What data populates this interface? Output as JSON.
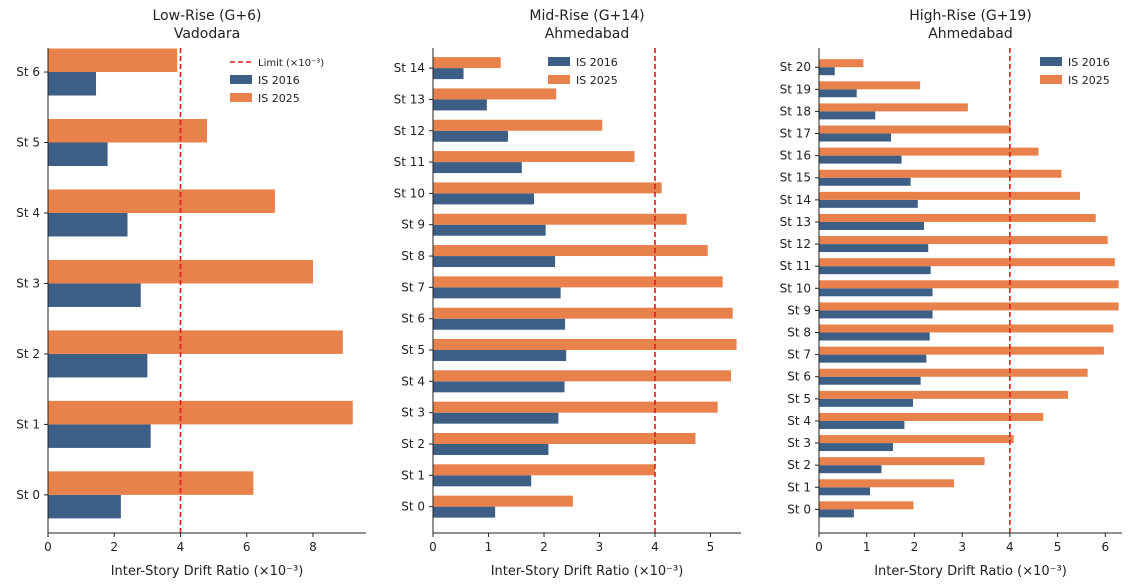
{
  "colors": {
    "is2016": "#3d5f86",
    "is2025": "#e8814b",
    "limit": "#e41a1c"
  },
  "chart_data": [
    {
      "type": "bar",
      "orientation": "horizontal",
      "title": "Low-Rise (G+6)\nVadodara",
      "xlabel": "Inter-Story Drift Ratio (×10⁻³)",
      "ylabel": "",
      "xlim": [
        0,
        9.6
      ],
      "xticks": [
        0,
        2,
        4,
        6,
        8
      ],
      "limit": 4,
      "legend": {
        "position": "upper right",
        "entries": [
          "Limit (×10⁻³)",
          "IS 2016",
          "IS 2025"
        ]
      },
      "categories": [
        "St 0",
        "St 1",
        "St 2",
        "St 3",
        "St 4",
        "St 5",
        "St 6"
      ],
      "series": [
        {
          "name": "IS 2016",
          "color": "#3d5f86",
          "values": [
            2.2,
            3.1,
            3.0,
            2.8,
            2.4,
            1.8,
            1.45
          ]
        },
        {
          "name": "IS 2025",
          "color": "#e8814b",
          "values": [
            6.2,
            9.2,
            8.9,
            8.0,
            6.85,
            4.8,
            3.9
          ]
        }
      ]
    },
    {
      "type": "bar",
      "orientation": "horizontal",
      "title": "Mid-Rise (G+14)\nAhmedabad",
      "xlabel": "Inter-Story Drift Ratio (×10⁻³)",
      "ylabel": "",
      "xlim": [
        0,
        5.55
      ],
      "xticks": [
        0,
        1,
        2,
        3,
        4,
        5
      ],
      "limit": 4,
      "legend": {
        "position": "upper right",
        "entries": [
          "IS 2016",
          "IS 2025"
        ]
      },
      "categories": [
        "St 0",
        "St 1",
        "St 2",
        "St 3",
        "St 4",
        "St 5",
        "St 6",
        "St 7",
        "St 8",
        "St 9",
        "St 10",
        "St 11",
        "St 12",
        "St 13",
        "St 14"
      ],
      "series": [
        {
          "name": "IS 2016",
          "color": "#3d5f86",
          "values": [
            1.12,
            1.77,
            2.08,
            2.26,
            2.37,
            2.4,
            2.38,
            2.3,
            2.2,
            2.03,
            1.82,
            1.6,
            1.35,
            0.97,
            0.55
          ]
        },
        {
          "name": "IS 2025",
          "color": "#e8814b",
          "values": [
            2.52,
            4.0,
            4.73,
            5.13,
            5.37,
            5.47,
            5.4,
            5.22,
            4.95,
            4.57,
            4.12,
            3.63,
            3.05,
            2.22,
            1.22
          ]
        }
      ]
    },
    {
      "type": "bar",
      "orientation": "horizontal",
      "title": "High-Rise (G+19)\nAhmedabad",
      "xlabel": "Inter-Story Drift Ratio (×10⁻³)",
      "ylabel": "",
      "xlim": [
        0,
        6.35
      ],
      "xticks": [
        0,
        1,
        2,
        3,
        4,
        5,
        6
      ],
      "limit": 4,
      "legend": {
        "position": "upper right",
        "entries": [
          "IS 2016",
          "IS 2025"
        ]
      },
      "categories": [
        "St 0",
        "St 1",
        "St 2",
        "St 3",
        "St 4",
        "St 5",
        "St 6",
        "St 7",
        "St 8",
        "St 9",
        "St 10",
        "St 11",
        "St 12",
        "St 13",
        "St 14",
        "St 15",
        "St 16",
        "St 17",
        "St 18",
        "St 19",
        "St 20"
      ],
      "series": [
        {
          "name": "IS 2016",
          "color": "#3d5f86",
          "values": [
            0.73,
            1.07,
            1.31,
            1.55,
            1.79,
            1.97,
            2.13,
            2.25,
            2.32,
            2.38,
            2.38,
            2.34,
            2.29,
            2.2,
            2.07,
            1.92,
            1.73,
            1.51,
            1.18,
            0.79,
            0.33
          ]
        },
        {
          "name": "IS 2025",
          "color": "#e8814b",
          "values": [
            1.98,
            2.83,
            3.47,
            4.08,
            4.7,
            5.22,
            5.63,
            5.97,
            6.17,
            6.28,
            6.28,
            6.2,
            6.05,
            5.8,
            5.47,
            5.08,
            4.6,
            4.02,
            3.12,
            2.12,
            0.93
          ]
        }
      ]
    }
  ]
}
